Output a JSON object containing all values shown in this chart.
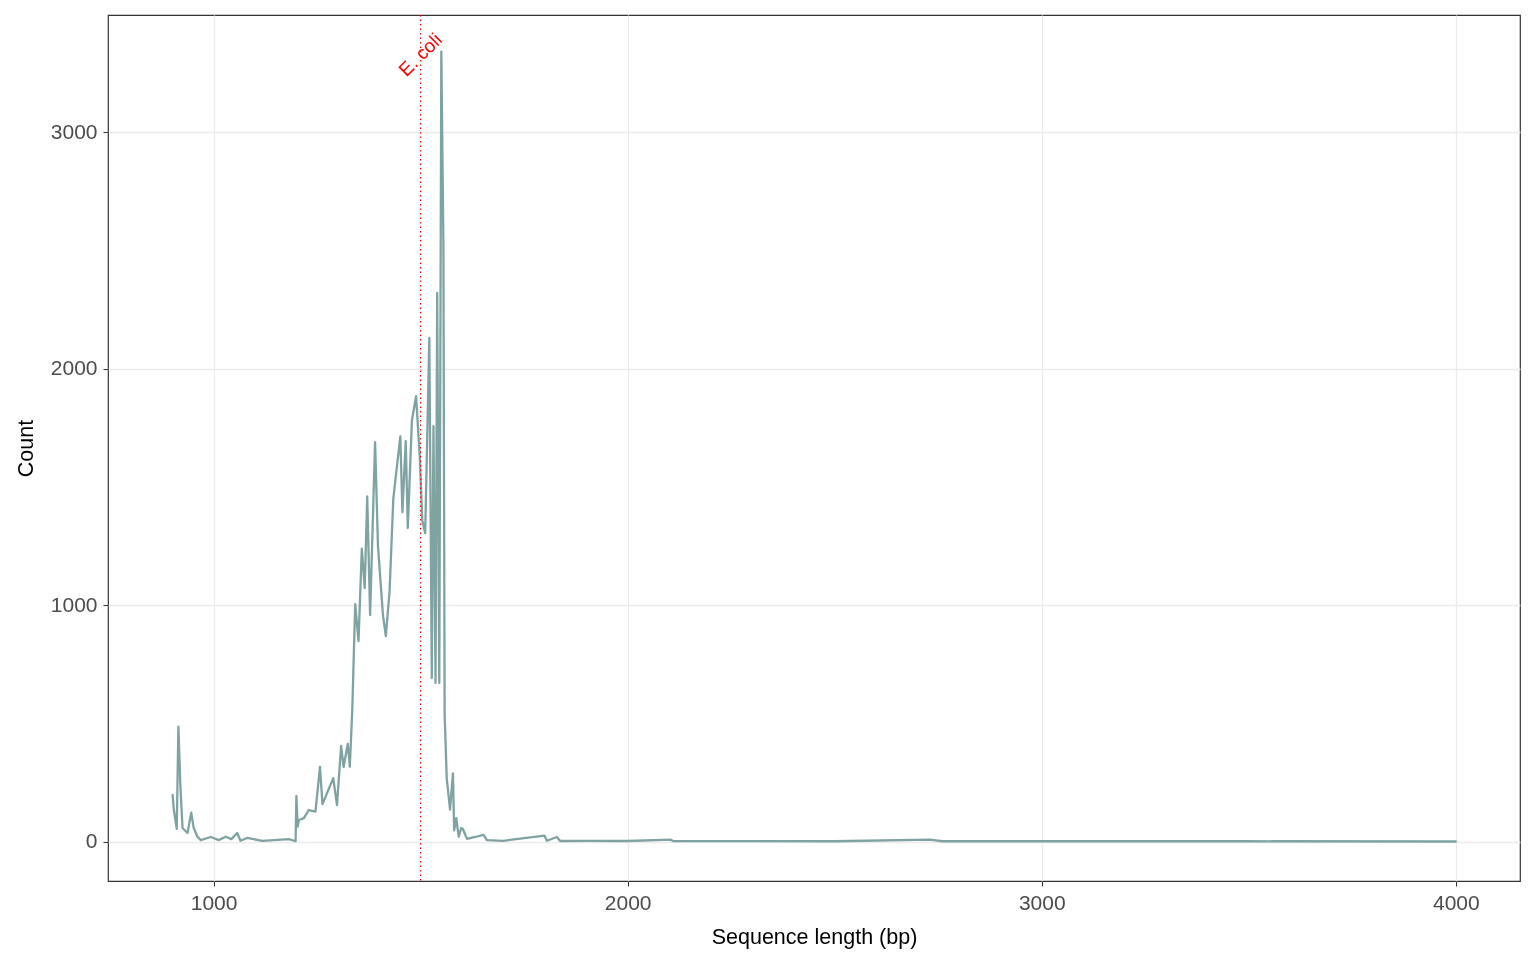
{
  "chart_data": {
    "type": "line",
    "xlabel": "Sequence length (bp)",
    "ylabel": "Count",
    "x": [
      901,
      904,
      911,
      915,
      920,
      925,
      937,
      946,
      952,
      961,
      969,
      993,
      1013,
      1029,
      1043,
      1057,
      1065,
      1081,
      1117,
      1182,
      1198,
      1200,
      1203,
      1206,
      1218,
      1230,
      1246,
      1257,
      1263,
      1289,
      1298,
      1308,
      1314,
      1324,
      1329,
      1335,
      1342,
      1350,
      1358,
      1365,
      1371,
      1378,
      1390,
      1397,
      1409,
      1416,
      1425,
      1434,
      1441,
      1451,
      1456,
      1464,
      1469,
      1479,
      1489,
      1498,
      1504,
      1511,
      1521,
      1527,
      1531,
      1536,
      1540,
      1545,
      1550,
      1555,
      1558,
      1563,
      1571,
      1578,
      1581,
      1586,
      1592,
      1598,
      1602,
      1612,
      1632,
      1652,
      1660,
      1700,
      1799,
      1805,
      1829,
      1837,
      1900,
      2000,
      2103,
      2110,
      2500,
      2730,
      2760,
      3000,
      3500,
      4000
    ],
    "series": [
      {
        "color": "#7fa3a2",
        "values": [
          199,
          135,
          55,
          487,
          228,
          59,
          38,
          124,
          59,
          22,
          8,
          21,
          8,
          22,
          12,
          38,
          5,
          17,
          5,
          12,
          3,
          195,
          65,
          93,
          101,
          135,
          128,
          317,
          160,
          270,
          156,
          406,
          317,
          415,
          318,
          562,
          1005,
          849,
          1240,
          1073,
          1460,
          959,
          1690,
          1250,
          959,
          870,
          1060,
          1450,
          1560,
          1714,
          1394,
          1694,
          1327,
          1783,
          1884,
          1626,
          1360,
          1305,
          2130,
          693,
          1757,
          672,
          2320,
          672,
          3340,
          2530,
          538,
          270,
          137,
          290,
          49,
          101,
          22,
          59,
          55,
          13,
          21,
          30,
          8,
          5,
          27,
          5,
          21,
          4,
          5,
          4,
          10,
          4,
          3,
          10,
          3,
          3,
          3,
          2
        ]
      }
    ],
    "xlim": [
      745,
      4155
    ],
    "ylim": [
      -165,
      3495
    ],
    "xticks": [
      1000,
      2000,
      3000,
      4000
    ],
    "yticks": [
      0,
      1000,
      2000,
      3000
    ],
    "grid": true,
    "ref_lines": [
      {
        "axis": "x",
        "value": 1500,
        "label": "E. coli",
        "color": "#ff0000",
        "line_style": "dotted"
      }
    ]
  }
}
